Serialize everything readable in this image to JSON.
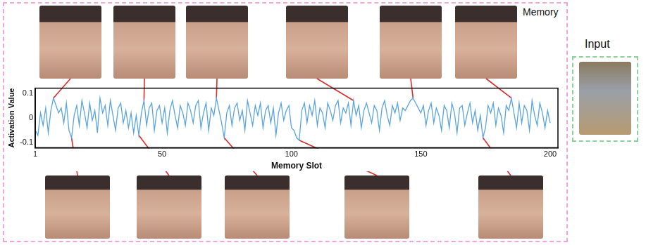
{
  "chart_data": {
    "type": "line",
    "x_label": "Memory Slot",
    "y_label": "Activation Value",
    "x": [
      1,
      2,
      3,
      4,
      5,
      6,
      7,
      8,
      9,
      10,
      11,
      12,
      13,
      14,
      15,
      16,
      17,
      18,
      19,
      20,
      21,
      22,
      23,
      24,
      25,
      26,
      27,
      28,
      29,
      30,
      31,
      32,
      33,
      34,
      35,
      36,
      37,
      38,
      39,
      40,
      41,
      42,
      43,
      44,
      45,
      46,
      47,
      48,
      49,
      50,
      51,
      52,
      53,
      54,
      55,
      56,
      57,
      58,
      59,
      60,
      61,
      62,
      63,
      64,
      65,
      66,
      67,
      68,
      69,
      70,
      71,
      72,
      73,
      74,
      75,
      76,
      77,
      78,
      79,
      80,
      81,
      82,
      83,
      84,
      85,
      86,
      87,
      88,
      89,
      90,
      91,
      92,
      93,
      94,
      95,
      96,
      97,
      98,
      99,
      100,
      101,
      102,
      103,
      104,
      105,
      106,
      107,
      108,
      109,
      110,
      111,
      112,
      113,
      114,
      115,
      116,
      117,
      118,
      119,
      120,
      121,
      122,
      123,
      124,
      125,
      126,
      127,
      128,
      129,
      130,
      131,
      132,
      133,
      134,
      135,
      136,
      137,
      138,
      139,
      140,
      141,
      142,
      143,
      144,
      145,
      146,
      147,
      148,
      149,
      150,
      151,
      152,
      153,
      154,
      155,
      156,
      157,
      158,
      159,
      160,
      161,
      162,
      163,
      164,
      165,
      166,
      167,
      168,
      169,
      170,
      171,
      172,
      173,
      174,
      175,
      176,
      177,
      178,
      179,
      180,
      181,
      182,
      183,
      184,
      185,
      186,
      187,
      188,
      189,
      190,
      191,
      192,
      193,
      194,
      195,
      196,
      197,
      198,
      199,
      200
    ],
    "values": [
      -0.05,
      -0.07,
      0.02,
      -0.03,
      0.04,
      -0.06,
      0.03,
      0.08,
      0.05,
      0.02,
      0.04,
      -0.02,
      0.06,
      -0.05,
      -0.08,
      0.01,
      0.05,
      -0.03,
      0.07,
      0.02,
      -0.04,
      0.06,
      -0.01,
      0.03,
      -0.06,
      0.08,
      0.02,
      0.05,
      -0.03,
      0.07,
      0.01,
      -0.05,
      0.04,
      0.06,
      -0.02,
      0.03,
      -0.04,
      0.02,
      -0.06,
      0.01,
      -0.07,
      0.02,
      0.07,
      -0.03,
      0.04,
      0.06,
      -0.05,
      0.03,
      0.05,
      -0.02,
      0.04,
      -0.06,
      0.03,
      0.07,
      0.01,
      -0.04,
      0.05,
      0.02,
      -0.03,
      0.06,
      0.03,
      -0.02,
      0.05,
      0.07,
      -0.04,
      0.02,
      0.06,
      -0.05,
      0.04,
      0.01,
      0.08,
      0.03,
      -0.02,
      -0.08,
      0.02,
      0.05,
      -0.03,
      0.04,
      0.06,
      -0.01,
      0.03,
      -0.05,
      0.07,
      0.02,
      -0.03,
      0.05,
      0.01,
      0.06,
      -0.04,
      0.03,
      0.05,
      -0.02,
      0.04,
      -0.07,
      0.02,
      0.06,
      -0.01,
      0.03,
      0.05,
      -0.04,
      -0.05,
      -0.08,
      -0.09,
      0.03,
      0.06,
      -0.02,
      0.05,
      0.01,
      0.07,
      -0.03,
      0.04,
      0.02,
      -0.04,
      0.06,
      0.03,
      -0.01,
      0.05,
      0.07,
      -0.02,
      0.04,
      0.02,
      0.06,
      -0.03,
      0.07,
      0.01,
      0.05,
      -0.04,
      0.03,
      0.06,
      0.02,
      -0.02,
      0.05,
      0.03,
      -0.05,
      0.04,
      0.07,
      0.01,
      -0.03,
      0.05,
      0.02,
      0.06,
      -0.01,
      0.04,
      0.03,
      0.05,
      0.07,
      0.08,
      0.06,
      0.04,
      0.02,
      0.05,
      -0.03,
      0.03,
      0.06,
      -0.02,
      0.04,
      0.01,
      -0.05,
      0.05,
      0.03,
      -0.04,
      0.06,
      0.02,
      -0.06,
      0.04,
      0.05,
      -0.03,
      0.02,
      0.06,
      -0.02,
      0.03,
      -0.05,
      0.01,
      -0.08,
      -0.04,
      0.05,
      0.02,
      0.06,
      -0.03,
      0.04,
      0.01,
      -0.06,
      0.05,
      0.03,
      0.08,
      0.02,
      -0.04,
      0.06,
      -0.02,
      0.05,
      0.03,
      -0.05,
      0.07,
      0.01,
      -0.03,
      0.06,
      0.02,
      -0.04,
      0.03,
      -0.02
    ],
    "color": "#5aa5e0",
    "xlim": [
      1,
      203
    ],
    "xticks": [
      1,
      50,
      100,
      150,
      200
    ],
    "ylim": [
      -0.12,
      0.12
    ],
    "yticks": [
      -0.1,
      0,
      0.1
    ],
    "grid": false
  },
  "figure": {
    "memory_label": "Memory",
    "input_label": "Input",
    "top_face_slots": [
      8,
      43,
      71,
      124,
      147,
      185
    ],
    "bottom_face_slots": [
      15,
      41,
      74,
      103,
      174
    ],
    "link_color": "#e02b2b"
  }
}
